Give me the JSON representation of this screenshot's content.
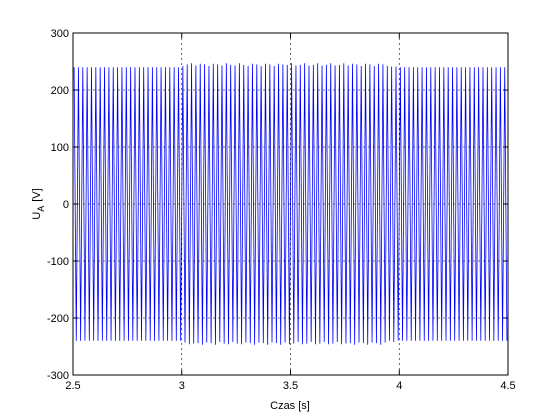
{
  "chart_data": {
    "type": "line",
    "xlabel": "Czas [s]",
    "ylabel": {
      "main": "U",
      "sub": "A",
      "unit": "[V]"
    },
    "xlim": [
      2.5,
      4.5
    ],
    "xticks": [
      2.5,
      3,
      3.5,
      4,
      4.5
    ],
    "ylim": [
      -300,
      300
    ],
    "yticks": [
      -300,
      -200,
      -100,
      0,
      100,
      200,
      300
    ],
    "grid": true,
    "series": [
      {
        "color": "#0000ff",
        "x": [
          2.505,
          2.515,
          2.525,
          2.535,
          2.545,
          2.555,
          2.565,
          2.575,
          2.585,
          2.595,
          2.605,
          2.615,
          2.625,
          2.635,
          2.645,
          2.655,
          2.665,
          2.675,
          2.685,
          2.695,
          2.705,
          2.715,
          2.725,
          2.735,
          2.745,
          2.755,
          2.765,
          2.775,
          2.785,
          2.795,
          2.805,
          2.815,
          2.825,
          2.835,
          2.845,
          2.855,
          2.865,
          2.875,
          2.885,
          2.895,
          2.905,
          2.915,
          2.925,
          2.935,
          2.945,
          2.955,
          2.965,
          2.975,
          2.985,
          2.995,
          3.005,
          3.015,
          3.025,
          3.035,
          3.045,
          3.055,
          3.065,
          3.075,
          3.085,
          3.095,
          3.105,
          3.115,
          3.125,
          3.135,
          3.145,
          3.155,
          3.165,
          3.175,
          3.185,
          3.195,
          3.205,
          3.215,
          3.225,
          3.235,
          3.245,
          3.255,
          3.265,
          3.275,
          3.285,
          3.295,
          3.305,
          3.315,
          3.325,
          3.335,
          3.345,
          3.355,
          3.365,
          3.375,
          3.385,
          3.395,
          3.405,
          3.415,
          3.425,
          3.435,
          3.445,
          3.455,
          3.465,
          3.475,
          3.485,
          3.495,
          3.505,
          3.515,
          3.525,
          3.535,
          3.545,
          3.555,
          3.565,
          3.575,
          3.585,
          3.595,
          3.605,
          3.615,
          3.625,
          3.635,
          3.645,
          3.655,
          3.665,
          3.675,
          3.685,
          3.695,
          3.705,
          3.715,
          3.725,
          3.735,
          3.745,
          3.755,
          3.765,
          3.775,
          3.785,
          3.795,
          3.805,
          3.815,
          3.825,
          3.835,
          3.845,
          3.855,
          3.865,
          3.875,
          3.885,
          3.895,
          3.905,
          3.915,
          3.925,
          3.935,
          3.945,
          3.955,
          3.965,
          3.975,
          3.985,
          3.995,
          4.005,
          4.015,
          4.025,
          4.035,
          4.045,
          4.055,
          4.065,
          4.075,
          4.085,
          4.095,
          4.105,
          4.115,
          4.125,
          4.135,
          4.145,
          4.155,
          4.165,
          4.175,
          4.185,
          4.195,
          4.205,
          4.215,
          4.225,
          4.235,
          4.245,
          4.255,
          4.265,
          4.275,
          4.285,
          4.295,
          4.305,
          4.315,
          4.325,
          4.335,
          4.345,
          4.355,
          4.365,
          4.375,
          4.385,
          4.395,
          4.405,
          4.415,
          4.425,
          4.435,
          4.445,
          4.455,
          4.465,
          4.475,
          4.485,
          4.495
        ],
        "values": [
          240,
          -240,
          240,
          -240,
          240,
          -240,
          240,
          -240,
          240,
          -240,
          240,
          -240,
          240,
          -240,
          240,
          -240,
          240,
          -240,
          240,
          -240,
          240,
          -240,
          240,
          -240,
          240,
          -240,
          240,
          -240,
          240,
          -240,
          240,
          -240,
          240,
          -240,
          240,
          -240,
          240,
          -240,
          240,
          -240,
          240,
          -240,
          240,
          -240,
          240,
          -240,
          240,
          -240,
          240,
          -240,
          242,
          -243,
          245,
          -246,
          247,
          -245,
          243,
          -244,
          246,
          -247,
          245,
          -243,
          242,
          -244,
          246,
          -247,
          245,
          -242,
          243,
          -245,
          247,
          -246,
          244,
          -242,
          243,
          -245,
          247,
          -246,
          244,
          -243,
          242,
          -244,
          246,
          -247,
          245,
          -243,
          242,
          -244,
          246,
          -247,
          245,
          -243,
          242,
          -244,
          246,
          -247,
          245,
          -243,
          244,
          -246,
          247,
          -245,
          243,
          -242,
          244,
          -246,
          247,
          -245,
          243,
          -242,
          244,
          -246,
          247,
          -245,
          243,
          -242,
          244,
          -246,
          247,
          -245,
          243,
          -242,
          244,
          -246,
          247,
          -245,
          243,
          -244,
          246,
          -247,
          245,
          -243,
          242,
          -244,
          246,
          -247,
          245,
          -243,
          242,
          -244,
          246,
          -247,
          245,
          -243,
          242,
          -240,
          241,
          -242,
          241,
          -240,
          240,
          -240,
          240,
          -240,
          240,
          -240,
          240,
          -240,
          240,
          -240,
          240,
          -240,
          240,
          -240,
          240,
          -240,
          240,
          -240,
          240,
          -240,
          240,
          -240,
          240,
          -240,
          240,
          -240,
          240,
          -240,
          240,
          -240,
          240,
          -240,
          240,
          -240,
          240,
          -240,
          240,
          -240,
          240,
          -240,
          240,
          -240,
          240,
          -240,
          240,
          -240,
          240,
          -240,
          240,
          -240
        ]
      }
    ]
  }
}
